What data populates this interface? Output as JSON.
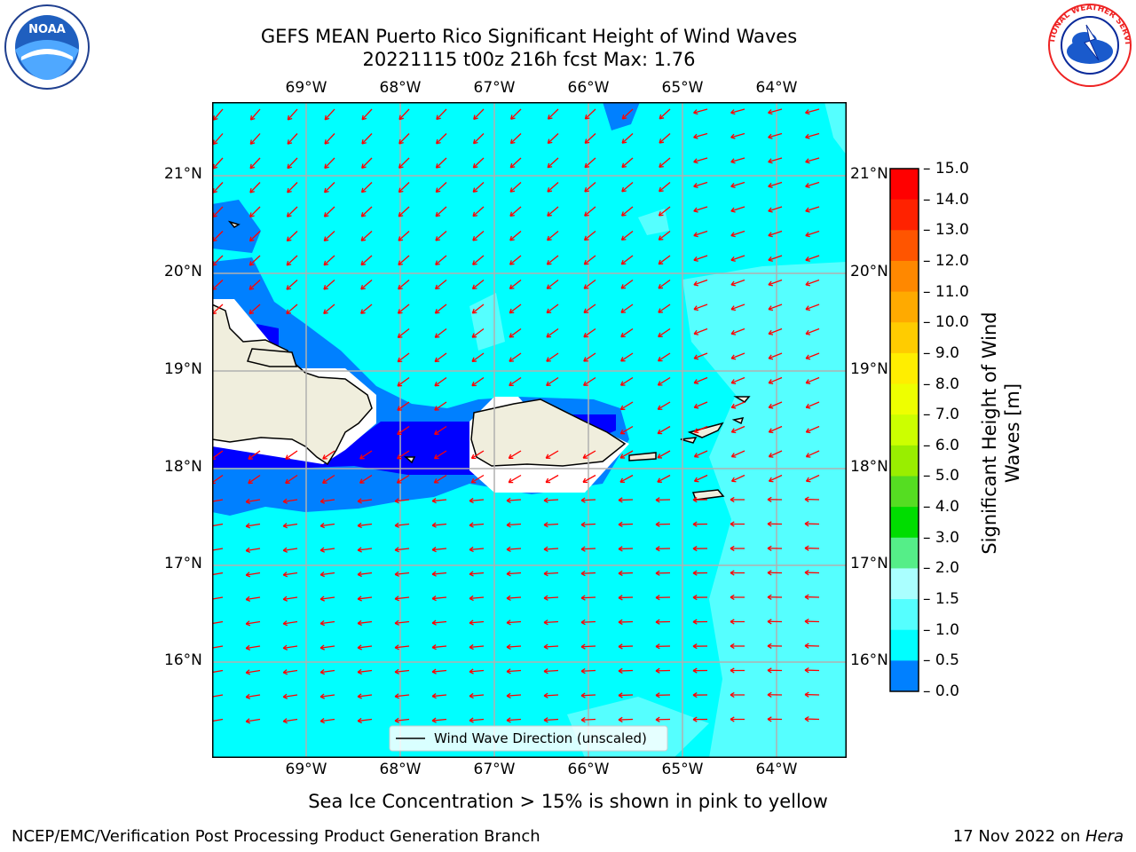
{
  "header": {
    "title_line1": "GEFS MEAN Puerto Rico Significant Height of Wind Waves",
    "title_line2": "20221115 t00z 216h fcst   Max: 1.76"
  },
  "logos": {
    "noaa_text": "NOAA",
    "nws_text": "NATIONAL WEATHER SERVICE"
  },
  "map": {
    "lon_labels": [
      "69°W",
      "68°W",
      "67°W",
      "66°W",
      "65°W",
      "64°W"
    ],
    "lat_labels": [
      "21°N",
      "20°N",
      "19°N",
      "18°N",
      "17°N",
      "16°N"
    ],
    "legend_label": "Wind Wave Direction (unscaled)",
    "colors": {
      "ocean_low": "#00ffff",
      "ocean_mid": "#55ffff",
      "band_1": "#0080ff",
      "band_0": "#0000ff",
      "land": "#f0eedd",
      "arrow": "#ff0000",
      "grid": "#b0b0b0"
    }
  },
  "colorbar": {
    "ticks": [
      "15.0",
      "14.0",
      "13.0",
      "12.0",
      "11.0",
      "10.0",
      "9.0",
      "8.0",
      "7.0",
      "6.0",
      "5.0",
      "4.0",
      "3.0",
      "2.0",
      "1.5",
      "1.0",
      "0.5",
      "0.0"
    ],
    "colors": [
      "#ff0000",
      "#ff2200",
      "#ff5500",
      "#ff8800",
      "#ffaa00",
      "#ffcc00",
      "#ffee00",
      "#eeff00",
      "#ccff00",
      "#99ee00",
      "#55dd22",
      "#00dd00",
      "#55ee88",
      "#aaffff",
      "#55ffff",
      "#00ffff",
      "#0080ff",
      "#0000ff"
    ],
    "label_line1": "Significant Height of Wind",
    "label_line2": "Waves [m]"
  },
  "footer": {
    "sea_ice_note": "Sea Ice Concentration > 15% is shown in pink to yellow",
    "left": "NCEP/EMC/Verification Post Processing Product Generation Branch",
    "right_prefix": "17 Nov 2022 on ",
    "right_machine": "Hera"
  }
}
